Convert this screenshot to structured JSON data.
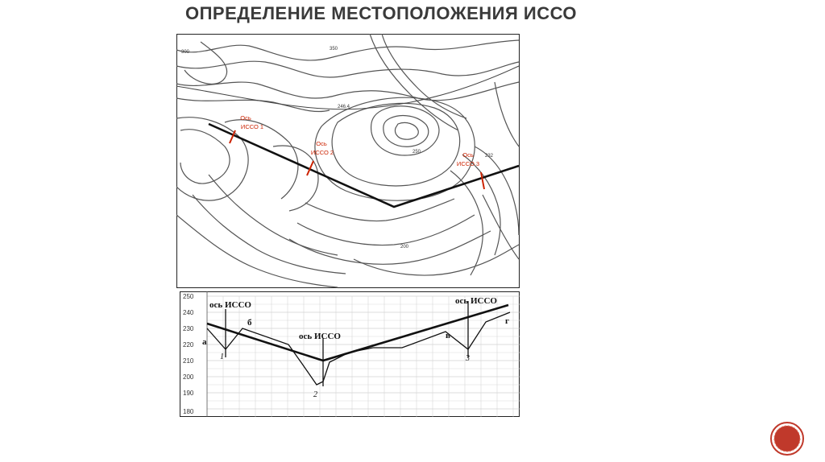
{
  "slide": {
    "title": "ОПРЕДЕЛЕНИЕ МЕСТОПОЛОЖЕНИЯ ИССО"
  },
  "map": {
    "axis_labels": [
      {
        "line1": "Ось",
        "line2": "ИССО 1"
      },
      {
        "line1": "Ось",
        "line2": "ИССО 2"
      },
      {
        "line1": "Ось",
        "line2": "ИССО 3"
      }
    ],
    "contour_labels": [
      "300",
      "350",
      "246.4",
      "250",
      "232",
      "200"
    ],
    "label_color": "#cc2200",
    "route_color": "#111111"
  },
  "profile": {
    "y_ticks": [
      "250",
      "240",
      "230",
      "220",
      "210",
      "200",
      "190",
      "180"
    ],
    "annotations": [
      "ось ИССО",
      "ось ИССО",
      "ось ИССО"
    ],
    "point_labels": [
      "а",
      "б",
      "в",
      "г"
    ],
    "structure_numbers": [
      "1",
      "2",
      "3"
    ]
  },
  "nav_button": {
    "icon": "circle-nav-icon",
    "color": "#c0392b"
  }
}
